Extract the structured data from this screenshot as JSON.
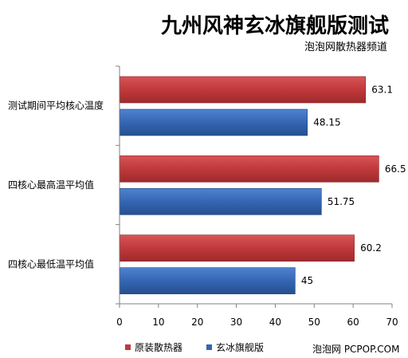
{
  "chart_data": {
    "type": "bar",
    "orientation": "horizontal",
    "title": "九州风神玄冰旗舰版测试",
    "subtitle": "泡泡网散热器频道",
    "categories": [
      "测试期间平均核心温度",
      "四核心最高温平均值",
      "四核心最低温平均值"
    ],
    "series": [
      {
        "name": "原装散热器",
        "values": [
          63.1,
          66.5,
          60.2
        ],
        "labels": [
          "63.1",
          "66.5",
          "60.2"
        ]
      },
      {
        "name": "玄冰旗舰版",
        "values": [
          48.15,
          51.75,
          45
        ],
        "labels": [
          "48.15",
          "51.75",
          "45"
        ]
      }
    ],
    "xlim": [
      0,
      70
    ],
    "xticks": [
      0,
      10,
      20,
      30,
      40,
      50,
      60,
      70
    ],
    "grid": false,
    "legend_position": "bottom-left",
    "watermark": "泡泡网 PCPOP.COM",
    "colors": {
      "series1": "#c0393b",
      "series1_dark": "#8e2426",
      "series2": "#3466b3",
      "series2_dark": "#214684",
      "text": "#000000",
      "axis": "#808080"
    }
  }
}
